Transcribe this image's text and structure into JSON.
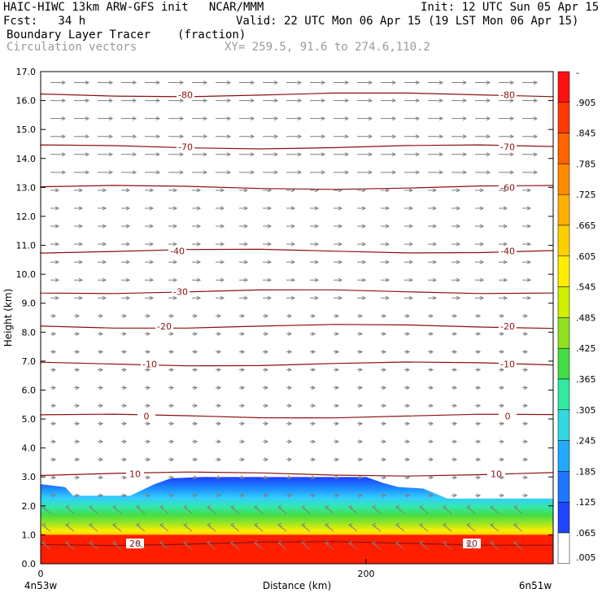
{
  "header": {
    "title_left": "HAIC-HIWC 13km ARW-GFS init   NCAR/MMM",
    "init": "Init: 12 UTC Sun 05 Apr 15",
    "fcst": "Fcst:   34 h",
    "valid": "Valid: 22 UTC Mon 06 Apr 15 (19 LST Mon 06 Apr 15)",
    "field_name": "Boundary Layer Tracer",
    "field_units": "(fraction)",
    "vector_label": "Circulation vectors",
    "xy_label": "XY= 259.5, 91.6 to 274.6,110.2"
  },
  "axes": {
    "ylabel": "Height (km)",
    "xlabel": "Distance (km)",
    "left_endpoint": "4n53w",
    "right_endpoint": "6n51w"
  },
  "colorbar": {
    "top_label": "-",
    "labels": [
      ".905",
      ".845",
      ".785",
      ".725",
      ".665",
      ".605",
      ".545",
      ".485",
      ".425",
      ".365",
      ".305",
      ".245",
      ".185",
      ".125",
      ".065",
      ".005"
    ]
  },
  "chart_data": {
    "type": "heatmap",
    "x_ticks": [
      "0",
      "200"
    ],
    "y_ticks": [
      "0.0",
      "1.0",
      "2.0",
      "3.0",
      "4.0",
      "5.0",
      "6.0",
      "7.0",
      "8.0",
      "9.0",
      "10.0",
      "11.0",
      "12.0",
      "13.0",
      "14.0",
      "15.0",
      "16.0",
      "17.0"
    ],
    "xlim": [
      0,
      315
    ],
    "ylim": [
      0,
      17
    ],
    "boundary_layer_top_km": [
      [
        0,
        2.75
      ],
      [
        15,
        2.65
      ],
      [
        20,
        2.35
      ],
      [
        55,
        2.35
      ],
      [
        70,
        2.75
      ],
      [
        80,
        2.95
      ],
      [
        100,
        3.0
      ],
      [
        200,
        3.0
      ],
      [
        210,
        2.8
      ],
      [
        220,
        2.65
      ],
      [
        235,
        2.6
      ],
      [
        250,
        2.25
      ],
      [
        315,
        2.25
      ]
    ],
    "temperature_contours": [
      {
        "label": "-80",
        "height_km": 16.2,
        "label_x_km": [
          89,
          287
        ]
      },
      {
        "label": "-70",
        "height_km": 14.4,
        "label_x_km": [
          89,
          287
        ]
      },
      {
        "label": "-60",
        "height_km": 13.0,
        "label_x_km": [
          287
        ]
      },
      {
        "label": "-40",
        "height_km": 10.8,
        "label_x_km": [
          84,
          287
        ]
      },
      {
        "label": "-30",
        "height_km": 9.4,
        "label_x_km": [
          86
        ]
      },
      {
        "label": "-20",
        "height_km": 8.2,
        "label_x_km": [
          76,
          287
        ]
      },
      {
        "label": "-10",
        "height_km": 6.9,
        "label_x_km": [
          67,
          287
        ]
      },
      {
        "label": "0",
        "height_km": 5.1,
        "label_x_km": [
          65,
          287
        ]
      },
      {
        "label": "10",
        "height_km": 3.1,
        "label_x_km": [
          58,
          280
        ]
      },
      {
        "label": "20",
        "height_km": 0.7,
        "label_x_km": [
          58,
          265
        ]
      }
    ]
  }
}
